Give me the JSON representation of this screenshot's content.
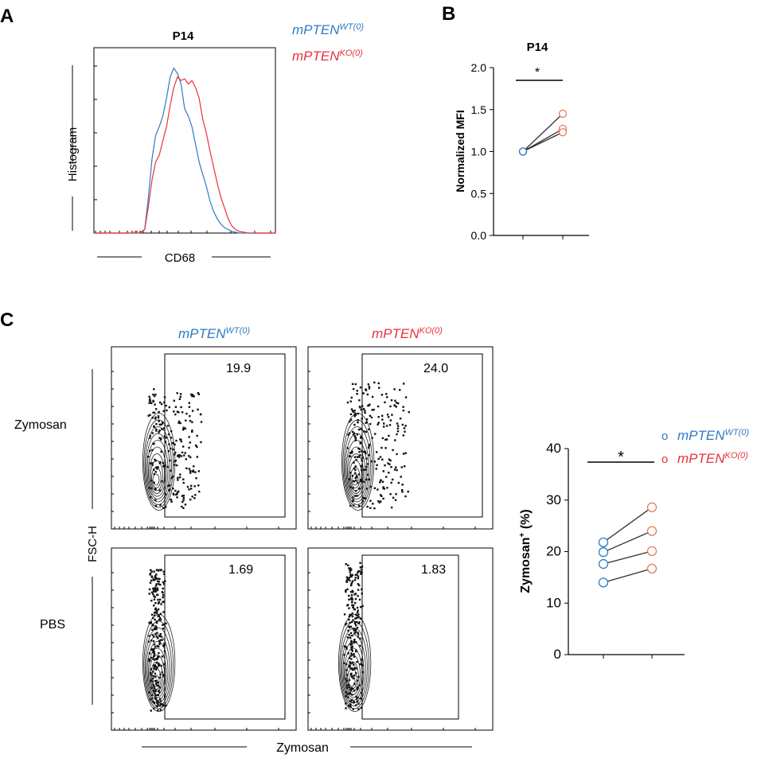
{
  "colors": {
    "wt": "#2f7bc4",
    "ko": "#e8323c",
    "ko_point": "#e87a55",
    "axis": "#000000",
    "dot": "#111111"
  },
  "legend": {
    "gene": "mPTEN",
    "wt_sup": "WT(0)",
    "ko_sup": "KO(0)"
  },
  "panel_a": {
    "letter": "A",
    "title": "P14",
    "ylabel": "Histogram",
    "xlabel": "CD68"
  },
  "panel_b": {
    "letter": "B",
    "title": "P14",
    "ylabel": "Normalized MFI",
    "significance": "*"
  },
  "panel_c": {
    "letter": "C",
    "col_wt": "mPTEN",
    "col_ko": "mPTEN",
    "row_top": "Zymosan",
    "row_bottom": "PBS",
    "ylabel": "FSC-H",
    "xlabel": "Zymosan",
    "gates": [
      "19.9",
      "24.0",
      "1.69",
      "1.83"
    ],
    "legend_glyph": "o",
    "significance": "*",
    "ylabel_main": "Zymosan",
    "ylabel_sup": "+",
    "ylabel_unit": " (%)"
  },
  "chart_data": [
    {
      "id": "A",
      "type": "line",
      "title": "P14",
      "xlabel": "CD68",
      "ylabel": "Histogram",
      "x": [
        0.0,
        0.05,
        0.1,
        0.15,
        0.2,
        0.25,
        0.28,
        0.3,
        0.32,
        0.34,
        0.36,
        0.38,
        0.4,
        0.42,
        0.44,
        0.46,
        0.48,
        0.5,
        0.52,
        0.54,
        0.56,
        0.58,
        0.6,
        0.62,
        0.64,
        0.66,
        0.68,
        0.7,
        0.72,
        0.74,
        0.76,
        0.78,
        0.8,
        0.85,
        0.9,
        1.0
      ],
      "series": [
        {
          "name": "mPTEN WT(0)",
          "values": [
            0,
            0,
            0,
            0,
            0,
            0,
            0.02,
            0.2,
            0.42,
            0.55,
            0.6,
            0.66,
            0.76,
            0.88,
            0.93,
            0.9,
            0.84,
            0.7,
            0.66,
            0.6,
            0.5,
            0.4,
            0.33,
            0.26,
            0.18,
            0.12,
            0.08,
            0.05,
            0.03,
            0.02,
            0.01,
            0.005,
            0,
            0,
            0,
            0
          ]
        },
        {
          "name": "mPTEN KO(0)",
          "values": [
            0,
            0,
            0,
            0,
            0,
            0,
            0.02,
            0.15,
            0.3,
            0.4,
            0.44,
            0.52,
            0.6,
            0.72,
            0.82,
            0.88,
            0.86,
            0.87,
            0.84,
            0.86,
            0.82,
            0.76,
            0.64,
            0.56,
            0.46,
            0.37,
            0.28,
            0.2,
            0.14,
            0.08,
            0.04,
            0.02,
            0.01,
            0,
            0,
            0
          ]
        }
      ]
    },
    {
      "id": "B",
      "type": "scatter",
      "title": "P14",
      "ylabel": "Normalized MFI",
      "categories": [
        "mPTEN WT(0)",
        "mPTEN KO(0)"
      ],
      "ylim": [
        0.0,
        2.0
      ],
      "yticks": [
        0.0,
        0.5,
        1.0,
        1.5,
        2.0
      ],
      "pairs": [
        [
          1.0,
          1.45
        ],
        [
          1.0,
          1.27
        ],
        [
          1.0,
          1.23
        ]
      ]
    },
    {
      "id": "C",
      "type": "scatter",
      "ylabel": "Zymosan+ (%)",
      "categories": [
        "mPTEN WT(0)",
        "mPTEN KO(0)"
      ],
      "ylim": [
        0,
        40
      ],
      "yticks": [
        0,
        10,
        20,
        30,
        40
      ],
      "pairs": [
        [
          21.8,
          28.6
        ],
        [
          19.9,
          24.0
        ],
        [
          17.6,
          20.1
        ],
        [
          14.0,
          16.7
        ]
      ]
    }
  ]
}
